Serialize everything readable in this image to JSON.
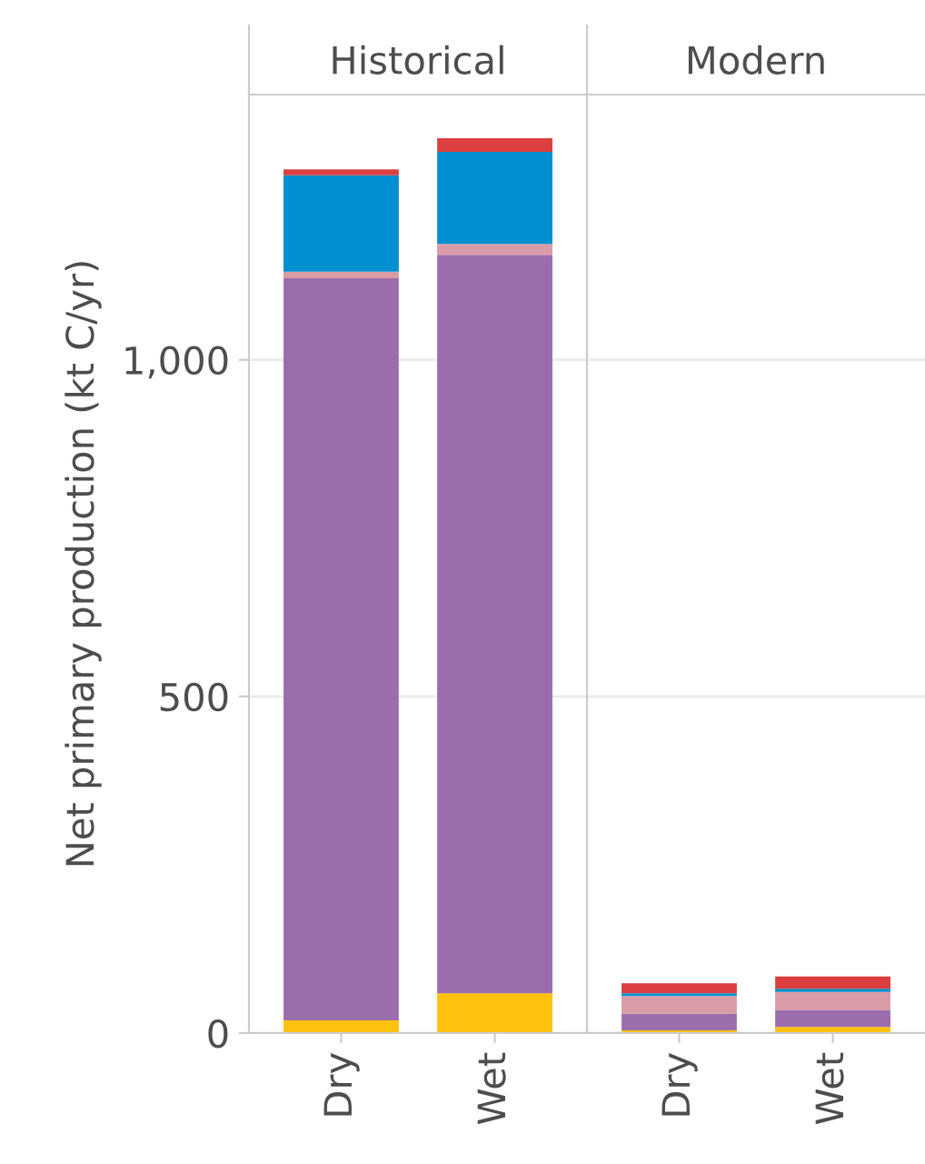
{
  "chart_data": [
    {
      "type": "bar",
      "title": "Historical",
      "ylabel": "Net primary production (kt C/yr)",
      "categories": [
        "Dry",
        "Wet"
      ],
      "stacked": true,
      "ylim": [
        0,
        1394
      ],
      "yticks": [
        0,
        500,
        {
          "value": 1000,
          "label": "1,000"
        }
      ],
      "grid": "y",
      "series": [
        {
          "color": "#ffc20e",
          "values": [
            19,
            59
          ]
        },
        {
          "color": "#9b6dad",
          "values": [
            1102,
            1097
          ]
        },
        {
          "color": "#d99ba6",
          "values": [
            10,
            16
          ]
        },
        {
          "color": "#008fd0",
          "values": [
            143,
            137
          ]
        },
        {
          "color": "#dc3f3f",
          "values": [
            9,
            20
          ]
        }
      ]
    },
    {
      "type": "bar",
      "title": "Modern",
      "categories": [
        "Dry",
        "Wet"
      ],
      "stacked": true,
      "ylim": [
        0,
        1394
      ],
      "grid": "y",
      "tick_labels": "x",
      "series": [
        {
          "color": "#ffc20e",
          "values": [
            4,
            9
          ]
        },
        {
          "color": "#9b6dad",
          "values": [
            25,
            25
          ]
        },
        {
          "color": "#d99ba6",
          "values": [
            26,
            27
          ]
        },
        {
          "color": "#008fd0",
          "values": [
            4,
            5
          ]
        },
        {
          "color": "#dc3f3f",
          "values": [
            15,
            18
          ]
        }
      ]
    }
  ]
}
